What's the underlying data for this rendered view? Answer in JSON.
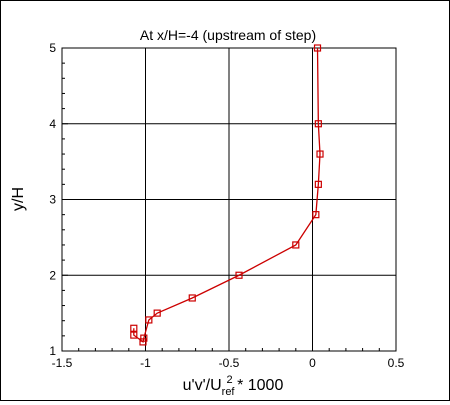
{
  "chart_data": {
    "type": "line",
    "title": "At x/H=-4 (upstream of step)",
    "xlabel": "u'v'/U",
    "xlabel_sub": "ref",
    "xlabel_sup": "2",
    "xlabel_tail": " * 1000",
    "ylabel": "y/H",
    "xlim": [
      -1.5,
      0.5
    ],
    "ylim": [
      1,
      5
    ],
    "xticks": [
      -1.5,
      -1,
      -0.5,
      0,
      0.5
    ],
    "xtick_labels": [
      "-1.5",
      "-1",
      "-0.5",
      "0",
      "0.5"
    ],
    "yticks": [
      1,
      2,
      3,
      4,
      5
    ],
    "ytick_labels": [
      "1",
      "2",
      "3",
      "4",
      "5"
    ],
    "grid": true,
    "series": [
      {
        "color": "#cc0000",
        "marker": "square",
        "points": [
          {
            "x": 0.03,
            "y": 5.0
          },
          {
            "x": 0.035,
            "y": 4.0
          },
          {
            "x": 0.045,
            "y": 3.6
          },
          {
            "x": 0.035,
            "y": 3.2
          },
          {
            "x": 0.02,
            "y": 2.8
          },
          {
            "x": -0.1,
            "y": 2.4
          },
          {
            "x": -0.44,
            "y": 2.0
          },
          {
            "x": -0.72,
            "y": 1.7
          },
          {
            "x": -0.93,
            "y": 1.5
          },
          {
            "x": -0.98,
            "y": 1.41
          },
          {
            "x": -1.01,
            "y": 1.17
          },
          {
            "x": -1.015,
            "y": 1.12
          },
          {
            "x": -1.07,
            "y": 1.21
          },
          {
            "x": -1.07,
            "y": 1.3
          }
        ]
      }
    ]
  }
}
